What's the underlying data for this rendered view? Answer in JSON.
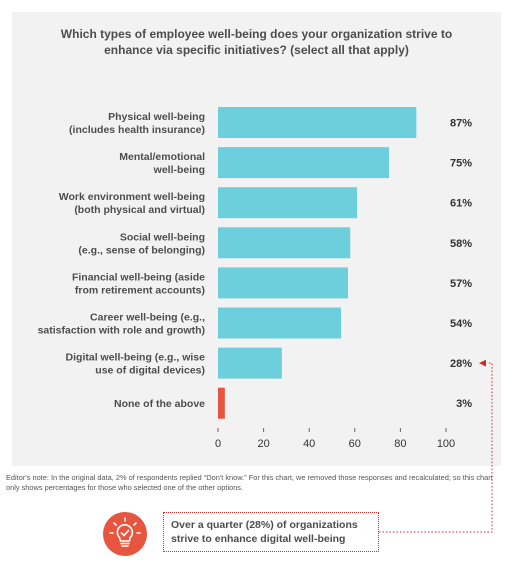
{
  "chart_data": {
    "type": "bar",
    "orientation": "horizontal",
    "title": "Which types of employee well-being does your organization strive to\nenhance via specific initiatives? (select all that apply)",
    "categories": [
      "Physical well-being\n(includes health insurance)",
      "Mental/emotional\nwell-being",
      "Work environment well-being\n(both physical and virtual)",
      "Social well-being\n(e.g., sense of belonging)",
      "Financial well-being (aside\nfrom retirement accounts)",
      "Career well-being (e.g.,\nsatisfaction with role and growth)",
      "Digital well-being (e.g., wise\nuse of digital devices)",
      "None of the above"
    ],
    "values": [
      87,
      75,
      61,
      58,
      57,
      54,
      28,
      3
    ],
    "value_labels": [
      "87%",
      "75%",
      "61%",
      "58%",
      "57%",
      "54%",
      "28%",
      "3%"
    ],
    "bar_colors": [
      "#6dcfdc",
      "#6dcfdc",
      "#6dcfdc",
      "#6dcfdc",
      "#6dcfdc",
      "#6dcfdc",
      "#6dcfdc",
      "#e8553f"
    ],
    "xlim": [
      0,
      100
    ],
    "xticks": [
      0,
      20,
      40,
      60,
      80,
      100
    ],
    "xlabel": "",
    "ylabel": "",
    "grid": false,
    "highlighted_category_index": 6
  },
  "note": "Editor's note: In the original data, 2% of respondents replied “Don't know.” For this chart, we removed those responses and recalculated; so this chart only shows percentages for those who selected one of the other options.",
  "callout": {
    "text": "Over a quarter (28%) of organizations\nstrive to enhance digital well-being",
    "icon": "lightbulb-check-icon",
    "icon_color": "#e8553f",
    "border_color": "#d12a2a"
  }
}
